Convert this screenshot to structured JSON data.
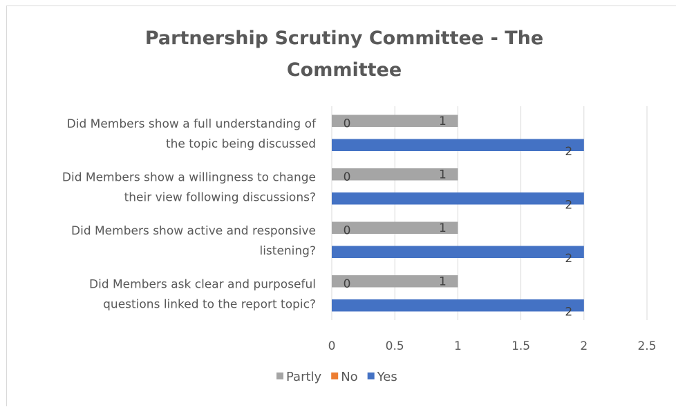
{
  "chart_data": {
    "type": "bar",
    "orientation": "horizontal",
    "title": "Partnership Scrutiny Committee - The Committee",
    "title_lines": [
      "Partnership Scrutiny Committee - The",
      "Committee"
    ],
    "categories": [
      "Did Members show a full understanding of the topic being discussed",
      "Did Members show a willingness to change their view following discussions?",
      "Did Members show active and responsive listening?",
      "Did Members ask clear and purposeful questions linked to the report topic?"
    ],
    "category_lines": [
      [
        "Did Members show a full understanding of",
        "the topic being discussed"
      ],
      [
        "Did Members show a willingness to change",
        "their view following discussions?"
      ],
      [
        "Did Members show active and responsive",
        "listening?"
      ],
      [
        "Did Members ask clear and purposeful",
        "questions linked to the report topic?"
      ]
    ],
    "series": [
      {
        "name": "Partly",
        "color": "#a5a5a5",
        "values": [
          1,
          1,
          1,
          1
        ]
      },
      {
        "name": "No",
        "color": "#ed7d31",
        "values": [
          0,
          0,
          0,
          0
        ]
      },
      {
        "name": "Yes",
        "color": "#4472c4",
        "values": [
          2,
          2,
          2,
          2
        ]
      }
    ],
    "xlim": [
      0,
      2.5
    ],
    "x_ticks": [
      "0",
      "0.5",
      "1",
      "1.5",
      "2",
      "2.5"
    ],
    "x_tick_values": [
      0,
      0.5,
      1,
      1.5,
      2,
      2.5
    ],
    "grid": true,
    "legend": "bottom",
    "data_labels": true
  }
}
